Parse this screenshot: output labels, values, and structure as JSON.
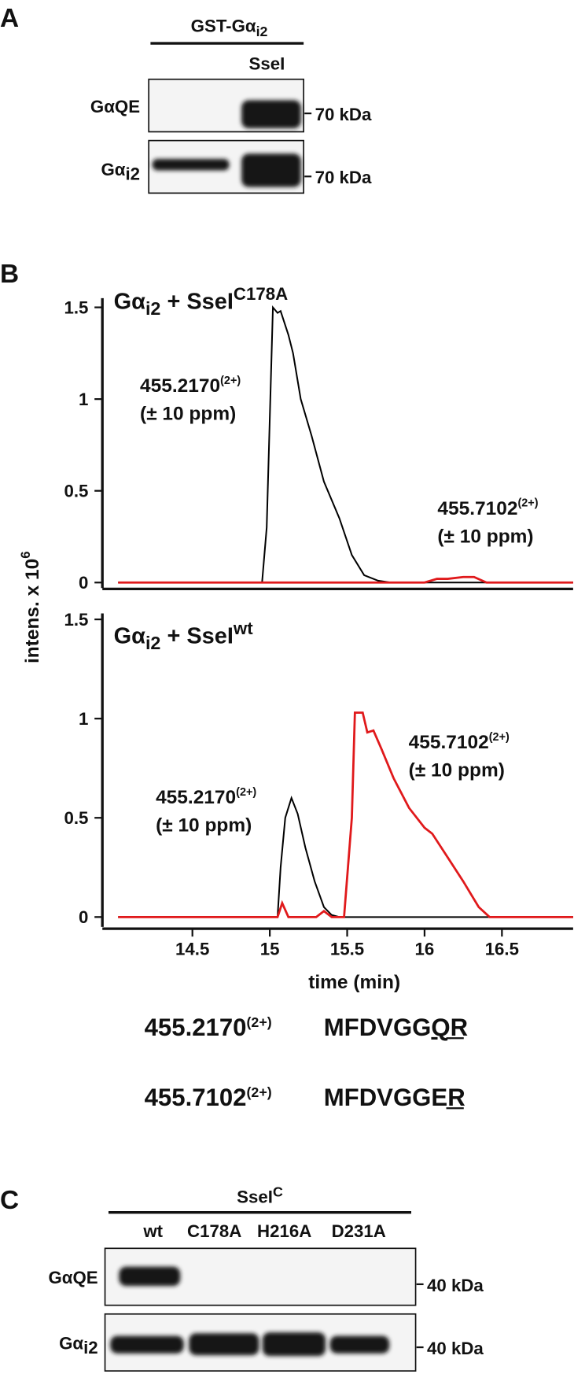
{
  "panel_a": {
    "label": "A",
    "header": "GST-Gα",
    "header_sub": "i2",
    "lane": "SseI",
    "rows": [
      {
        "name": "GαQE"
      },
      {
        "name": "Gα",
        "name_sub": "i2"
      }
    ],
    "mw": "70 kDa"
  },
  "panel_b": {
    "label": "B"
  },
  "chart_data": [
    {
      "type": "line",
      "title": "Gα",
      "title_sub": "i2",
      "title_mid": " + SseI",
      "title_sup": "C178A",
      "ylabel": "intens. x 10",
      "ylabel_sup": "6",
      "xlim": [
        14.02,
        16.96
      ],
      "ylim": [
        -0.03,
        1.55
      ],
      "yticks": [
        0,
        0.5,
        1,
        1.5
      ],
      "series": [
        {
          "name": "455.2170",
          "charge": "(2+)",
          "tolerance": "(± 10 ppm)",
          "color": "#000000",
          "x": [
            14.02,
            14.95,
            14.98,
            15.02,
            15.05,
            15.07,
            15.12,
            15.15,
            15.2,
            15.27,
            15.35,
            15.45,
            15.53,
            15.61,
            15.7,
            15.78,
            16.96
          ],
          "values": [
            0,
            0,
            0.3,
            1.5,
            1.47,
            1.48,
            1.35,
            1.25,
            1.0,
            0.8,
            0.55,
            0.35,
            0.15,
            0.04,
            0.01,
            0,
            0
          ]
        },
        {
          "name": "455.7102",
          "charge": "(2+)",
          "tolerance": "(± 10 ppm)",
          "color": "#e0191b",
          "x": [
            14.02,
            16.0,
            16.08,
            16.15,
            16.25,
            16.32,
            16.4,
            16.96
          ],
          "values": [
            0,
            0,
            0.02,
            0.02,
            0.03,
            0.03,
            0,
            0
          ]
        }
      ]
    },
    {
      "type": "line",
      "title": "Gα",
      "title_sub": "i2",
      "title_mid": " + SseI",
      "title_sup": "wt",
      "xlabel": "time (min)",
      "xlim": [
        14.02,
        16.96
      ],
      "ylim": [
        -0.05,
        1.53
      ],
      "xticks": [
        14.5,
        15,
        15.5,
        16,
        16.5
      ],
      "yticks": [
        0,
        0.5,
        1,
        1.5
      ],
      "series": [
        {
          "name": "455.2170",
          "charge": "(2+)",
          "tolerance": "(± 10 ppm)",
          "color": "#000000",
          "x": [
            14.02,
            15.05,
            15.07,
            15.1,
            15.14,
            15.18,
            15.23,
            15.29,
            15.35,
            15.4,
            15.45,
            16.96
          ],
          "values": [
            0,
            0,
            0.25,
            0.5,
            0.6,
            0.52,
            0.35,
            0.18,
            0.05,
            0.01,
            0,
            0
          ]
        },
        {
          "name": "455.7102",
          "charge": "(2+)",
          "tolerance": "(± 10 ppm)",
          "color": "#e0191b",
          "x": [
            14.02,
            15.05,
            15.08,
            15.12,
            15.3,
            15.35,
            15.4,
            15.48,
            15.53,
            15.55,
            15.6,
            15.63,
            15.67,
            15.72,
            15.8,
            15.9,
            16.0,
            16.05,
            16.15,
            16.25,
            16.35,
            16.42,
            16.96
          ],
          "values": [
            0,
            0,
            0.07,
            0,
            0,
            0.03,
            0,
            0,
            0.5,
            1.03,
            1.03,
            0.93,
            0.94,
            0.85,
            0.7,
            0.55,
            0.45,
            0.42,
            0.3,
            0.18,
            0.05,
            0,
            0
          ]
        }
      ]
    }
  ],
  "peptides": [
    {
      "mass": "455.2170",
      "charge": "(2+)",
      "seq_pre": "MFDVGG",
      "seq_mark": "Q",
      "seq_post": "R"
    },
    {
      "mass": "455.7102",
      "charge": "(2+)",
      "seq_pre": "MFDVGG",
      "seq_mark": "E",
      "seq_post": "R"
    }
  ],
  "panel_c": {
    "label": "C",
    "header": "SseI",
    "header_sup": "C",
    "lanes": [
      "wt",
      "C178A",
      "H216A",
      "D231A"
    ],
    "rows": [
      {
        "name": "GαQE"
      },
      {
        "name": "Gα",
        "name_sub": "i2"
      }
    ],
    "mw": "40 kDa"
  }
}
